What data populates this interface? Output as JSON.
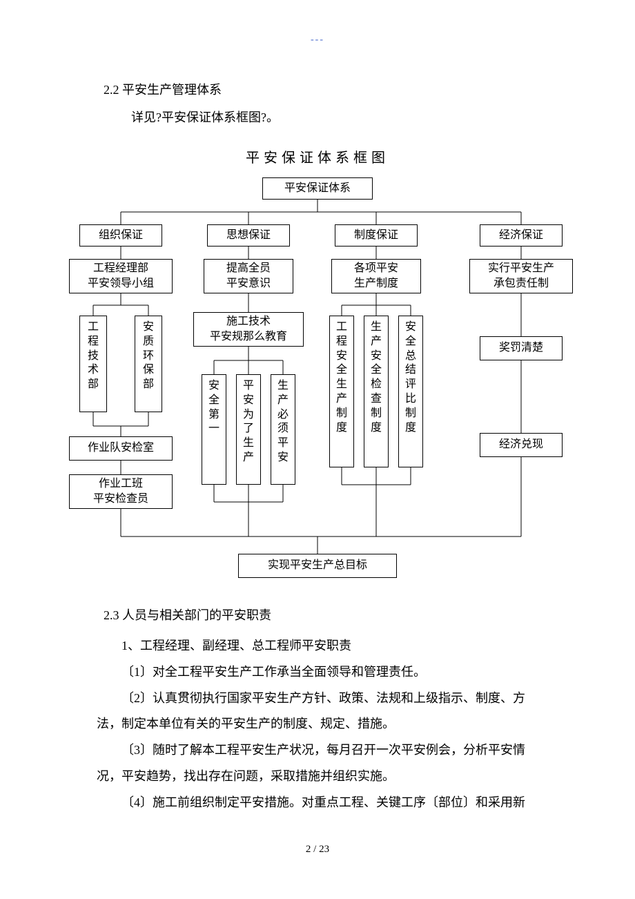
{
  "header_marker": "---",
  "section_2_2": "2.2 平安生产管理体系",
  "section_2_2_sub": "详见?平安保证体系框图?。",
  "chart_title": "平安保证体系框图",
  "chart": {
    "border_color": "#000000",
    "bg_color": "#ffffff",
    "font_size": 16,
    "root": "平安保证体系",
    "branches": {
      "org": {
        "title": "组织保证",
        "lvl2": "工程经理部\n平安领导小组",
        "sub_left": "工程技术部",
        "sub_right": "安质环保部",
        "lvl4": "作业队安检室",
        "lvl5": "作业工班\n平安检查员"
      },
      "thought": {
        "title": "思想保证",
        "lvl2": "提高全员\n平安意识",
        "lvl3": "施工技术\n平安规那么教育",
        "sub1": "安全第一",
        "sub2": "平安为了生产",
        "sub3": "生产必须平安"
      },
      "system": {
        "title": "制度保证",
        "lvl2": "各项平安\n生产制度",
        "sub1": "工程安全生产制度",
        "sub2": "生产安全检查制度",
        "sub3": "安全总结评比制度"
      },
      "econ": {
        "title": "经济保证",
        "lvl2": "实行平安生产\n承包责任制",
        "lvl3": "奖罚清楚",
        "lvl4": "经济兑现"
      }
    },
    "goal": "实现平安生产总目标"
  },
  "section_2_3": "2.3 人员与相关部门的平安职责",
  "body": {
    "p1": "1、工程经理、副经理、总工程师平安职责",
    "p2": "〔1〕对全工程平安生产工作承当全面领导和管理责任。",
    "p3": "〔2〕认真贯彻执行国家平安生产方针、政策、法规和上级指示、制度、方法，制定本单位有关的平安生产的制度、规定、措施。",
    "p4": "〔3〕随时了解本工程平安生产状况，每月召开一次平安例会，分析平安情况，平安趋势，找出存在问题，采取措施并组织实施。",
    "p5": "〔4〕施工前组织制定平安措施。对重点工程、关键工序〔部位〕和采用新"
  },
  "footer": "2  /  23"
}
